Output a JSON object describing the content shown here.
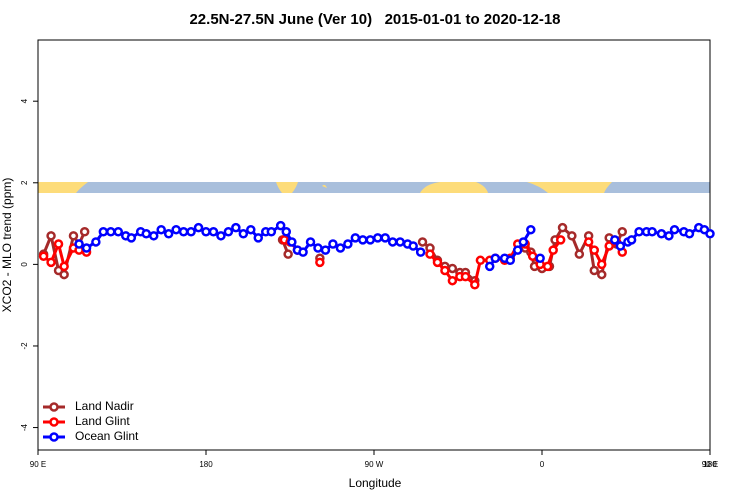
{
  "chart_data": {
    "type": "line",
    "title": "22.5N-27.5N June (Ver 10)   2015-01-01 to 2020-12-18",
    "x_label": "Longitude",
    "y_label": "XCO2 - MLO trend (ppm)",
    "xlim": [
      90,
      450
    ],
    "ylim": [
      -4.55,
      5.5
    ],
    "xticks": [
      {
        "value": 90,
        "label": "90 E"
      },
      {
        "value": 180,
        "label": "180"
      },
      {
        "value": 270,
        "label": "90 W"
      },
      {
        "value": 360,
        "label": "0"
      },
      {
        "value": 450,
        "label": "90 E"
      },
      {
        "value": 540,
        "label": "180"
      }
    ],
    "yticks": [
      -4,
      -2,
      0,
      2,
      4
    ],
    "legend": "bottom-left",
    "series": [
      {
        "name": "Land Nadir",
        "color": "#a52a2a",
        "x": [
          93,
          97,
          101,
          104,
          109,
          112,
          115,
          null,
          221,
          224,
          null,
          241,
          null,
          296,
          300,
          304,
          308,
          312,
          316,
          319,
          324,
          null,
          351,
          354,
          356,
          360,
          364,
          367,
          371,
          376,
          380,
          385,
          388,
          392,
          396,
          400,
          403
        ],
        "values": [
          0.25,
          0.7,
          -0.15,
          -0.25,
          0.7,
          0.5,
          0.8,
          null,
          0.6,
          0.25,
          null,
          0.15,
          null,
          0.55,
          0.4,
          0.1,
          -0.05,
          -0.1,
          -0.2,
          -0.2,
          -0.4,
          null,
          0.4,
          0.3,
          -0.05,
          -0.1,
          -0.05,
          0.6,
          0.9,
          0.7,
          0.25,
          0.7,
          -0.15,
          -0.25,
          0.65,
          0.5,
          0.8
        ]
      },
      {
        "name": "Land Glint",
        "color": "#ff0000",
        "x": [
          93,
          97,
          101,
          104,
          109,
          112,
          116,
          null,
          222,
          225,
          229,
          null,
          241,
          null,
          300,
          304,
          308,
          312,
          316,
          319,
          324,
          327,
          332,
          335,
          340,
          343,
          347,
          351,
          355,
          359,
          363,
          366,
          370,
          null,
          385,
          388,
          392,
          396,
          400,
          403
        ],
        "values": [
          0.2,
          0.05,
          0.5,
          -0.05,
          0.4,
          0.35,
          0.3,
          null,
          0.6,
          0.55,
          0.35,
          null,
          0.05,
          null,
          0.25,
          0.05,
          -0.15,
          -0.4,
          -0.3,
          -0.3,
          -0.5,
          0.1,
          0.1,
          0.15,
          0.1,
          0.15,
          0.5,
          0.5,
          0.2,
          0.0,
          -0.05,
          0.35,
          0.6,
          null,
          0.55,
          0.35,
          0.0,
          0.45,
          0.55,
          0.3
        ]
      },
      {
        "name": "Ocean Glint",
        "color": "#0000ff",
        "x": [
          112,
          116,
          121,
          125,
          129,
          133,
          137,
          140,
          145,
          148,
          152,
          156,
          160,
          164,
          168,
          172,
          176,
          180,
          184,
          188,
          192,
          196,
          200,
          204,
          208,
          212,
          215,
          220,
          223,
          226,
          229,
          232,
          236,
          240,
          244,
          248,
          252,
          256,
          260,
          264,
          268,
          272,
          276,
          280,
          284,
          288,
          291,
          295,
          null,
          332,
          335,
          340,
          343,
          347,
          350,
          354,
          null,
          359,
          null,
          399,
          402,
          406,
          408,
          412,
          416,
          419,
          424,
          428,
          431,
          436,
          439,
          444,
          447,
          450
        ],
        "values": [
          0.5,
          0.4,
          0.55,
          0.8,
          0.8,
          0.8,
          0.7,
          0.65,
          0.8,
          0.75,
          0.7,
          0.85,
          0.75,
          0.85,
          0.8,
          0.8,
          0.9,
          0.8,
          0.8,
          0.7,
          0.8,
          0.9,
          0.75,
          0.85,
          0.65,
          0.8,
          0.8,
          0.95,
          0.8,
          0.55,
          0.35,
          0.3,
          0.55,
          0.4,
          0.35,
          0.5,
          0.4,
          0.5,
          0.65,
          0.6,
          0.6,
          0.65,
          0.65,
          0.55,
          0.55,
          0.5,
          0.45,
          0.3,
          null,
          -0.05,
          0.15,
          0.15,
          0.1,
          0.35,
          0.55,
          0.85,
          null,
          0.15,
          null,
          0.6,
          0.45,
          0.55,
          0.6,
          0.8,
          0.8,
          0.8,
          0.75,
          0.7,
          0.85,
          0.8,
          0.75,
          0.9,
          0.85,
          0.75
        ]
      }
    ]
  }
}
